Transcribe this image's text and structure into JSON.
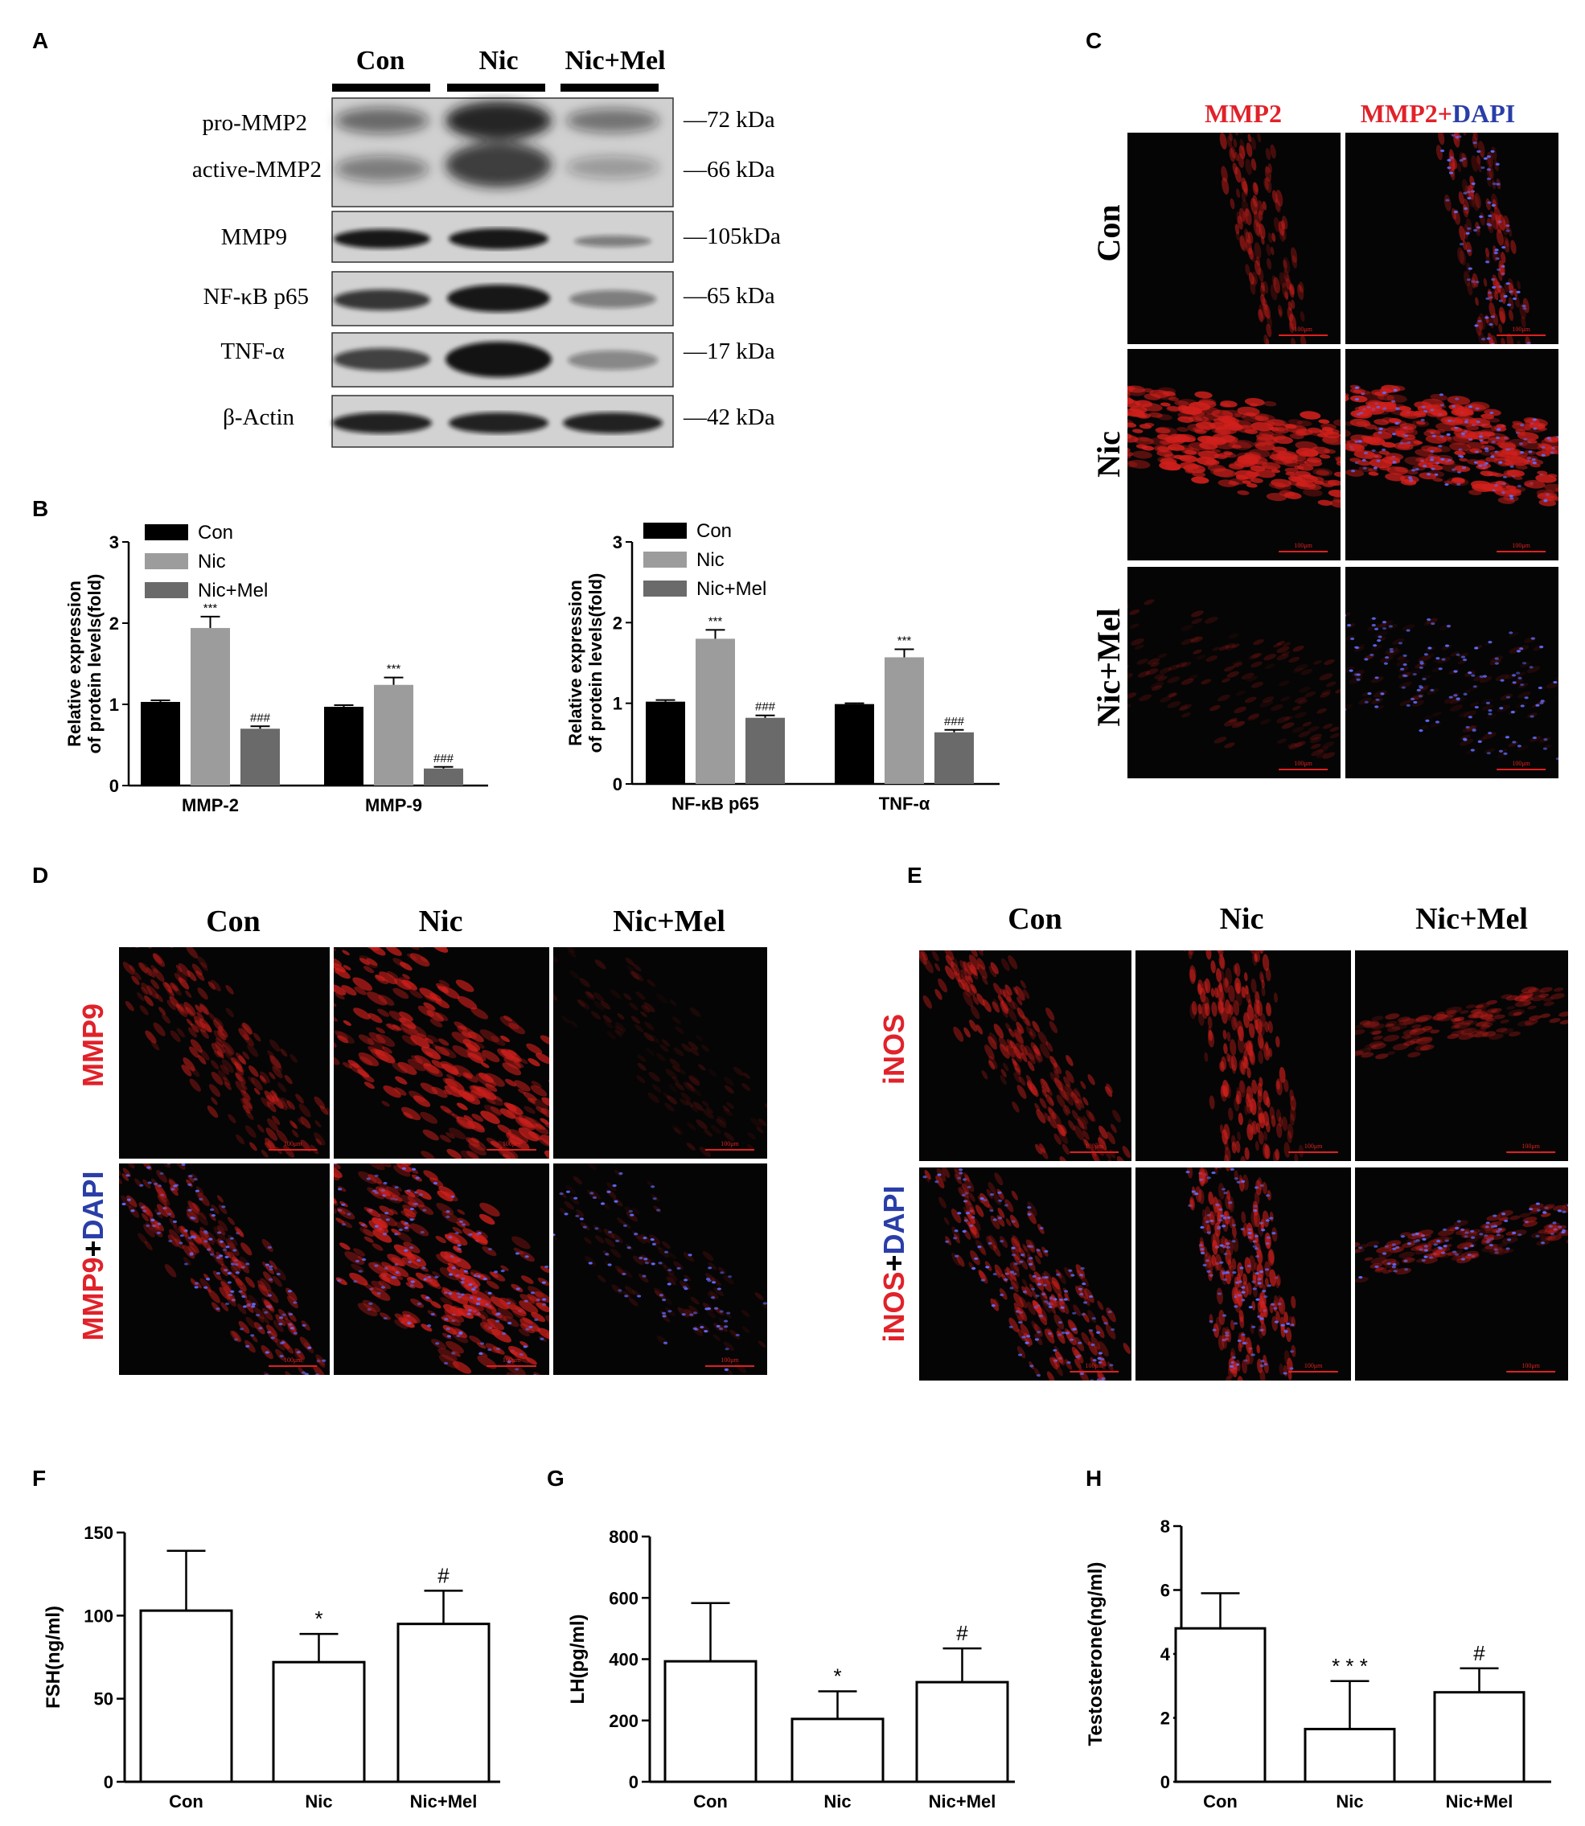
{
  "panel_letters": [
    "A",
    "B",
    "C",
    "D",
    "E",
    "F",
    "G",
    "H"
  ],
  "western": {
    "groups": [
      "Con",
      "Nic",
      "Nic+Mel"
    ],
    "proteins": [
      "pro-MMP2",
      "active-MMP2",
      "MMP9",
      "NF-κB p65",
      "TNF-α",
      "β-Actin"
    ],
    "markers": [
      "—72  kDa",
      "—66  kDa",
      "—105kDa",
      "—65  kDa",
      "—17  kDa",
      "—42  kDa"
    ]
  },
  "panel_c": {
    "col_left": "MMP2",
    "col_right_a": "MMP2+",
    "col_right_b": "DAPI",
    "rows": [
      "Con",
      "Nic",
      "Nic+Mel"
    ],
    "colors": {
      "red": "#e0222a",
      "blue": "#2a3ea8"
    }
  },
  "panel_d": {
    "cols": [
      "Con",
      "Nic",
      "Nic+Mel"
    ],
    "row_top": "MMP9",
    "row_bottom_a": "MMP9",
    "row_bottom_b": "+",
    "row_bottom_c": "DAPI"
  },
  "panel_e": {
    "cols": [
      "Con",
      "Nic",
      "Nic+Mel"
    ],
    "row_top": "iNOS",
    "row_bottom_a": "iNOS",
    "row_bottom_b": "+",
    "row_bottom_c": "DAPI"
  },
  "scale_bar": "100μm",
  "chart_data": [
    {
      "id": "B1",
      "type": "bar",
      "ylabel": "Relative expression of protein levels(fold)",
      "ylabel_lines": [
        "Relative expression",
        "of protein levels(fold)"
      ],
      "categories": [
        "MMP-2",
        "MMP-9"
      ],
      "series": [
        {
          "name": "Con",
          "values": [
            1.03,
            0.97
          ],
          "errors": [
            0.02,
            0.02
          ],
          "marks": [
            "",
            ""
          ],
          "color": "#000000"
        },
        {
          "name": "Nic",
          "values": [
            1.94,
            1.24
          ],
          "errors": [
            0.14,
            0.09
          ],
          "marks": [
            "***",
            "***"
          ],
          "color": "#9c9c9c"
        },
        {
          "name": "Nic+Mel",
          "values": [
            0.7,
            0.21
          ],
          "errors": [
            0.03,
            0.02
          ],
          "marks": [
            "###",
            "###"
          ],
          "color": "#6a6a6a"
        }
      ],
      "yticks": [
        "0",
        "1",
        "2",
        "3"
      ],
      "ylim": [
        0,
        3
      ],
      "legend": "top-left"
    },
    {
      "id": "B2",
      "type": "bar",
      "ylabel": "Relative expression of protein levels(fold)",
      "ylabel_lines": [
        "Relative expression",
        "of protein levels(fold)"
      ],
      "categories": [
        "NF-κB p65",
        "TNF-α"
      ],
      "series": [
        {
          "name": "Con",
          "values": [
            1.02,
            0.99
          ],
          "errors": [
            0.02,
            0.01
          ],
          "marks": [
            "",
            ""
          ],
          "color": "#000000"
        },
        {
          "name": "Nic",
          "values": [
            1.8,
            1.57
          ],
          "errors": [
            0.11,
            0.1
          ],
          "marks": [
            "***",
            "***"
          ],
          "color": "#9c9c9c"
        },
        {
          "name": "Nic+Mel",
          "values": [
            0.82,
            0.64
          ],
          "errors": [
            0.03,
            0.03
          ],
          "marks": [
            "###",
            "###"
          ],
          "color": "#6a6a6a"
        }
      ],
      "yticks": [
        "0",
        "1",
        "2",
        "3"
      ],
      "ylim": [
        0,
        3
      ],
      "legend": "top-left"
    },
    {
      "id": "F",
      "type": "bar",
      "ylabel": "FSH(ng/ml)",
      "categories": [
        "Con",
        "Nic",
        "Nic+Mel"
      ],
      "values": [
        103,
        72,
        95
      ],
      "errors": [
        36,
        17,
        20
      ],
      "marks": [
        "",
        "*",
        "#"
      ],
      "yticks": [
        "0",
        "50",
        "100",
        "150"
      ],
      "ylim": [
        0,
        150
      ]
    },
    {
      "id": "G",
      "type": "bar",
      "ylabel": "LH(pg/ml)",
      "categories": [
        "Con",
        "Nic",
        "Nic+Mel"
      ],
      "values": [
        393,
        205,
        325
      ],
      "errors": [
        190,
        90,
        110
      ],
      "marks": [
        "",
        "*",
        "#"
      ],
      "yticks": [
        "0",
        "200",
        "400",
        "600",
        "800"
      ],
      "ylim": [
        0,
        800
      ]
    },
    {
      "id": "H",
      "type": "bar",
      "ylabel": "Testosterone(ng/ml)",
      "categories": [
        "Con",
        "Nic",
        "Nic+Mel"
      ],
      "values": [
        4.8,
        1.65,
        2.8
      ],
      "errors": [
        1.1,
        1.5,
        0.75
      ],
      "marks": [
        "",
        "* * *",
        "#"
      ],
      "yticks": [
        "0",
        "2",
        "4",
        "6",
        "8"
      ],
      "ylim": [
        0,
        8
      ]
    }
  ]
}
